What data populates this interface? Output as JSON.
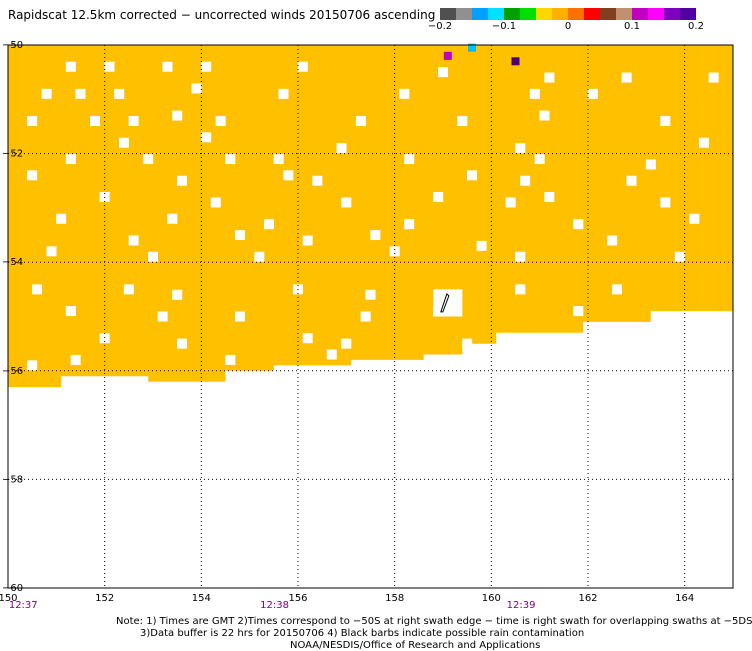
{
  "title": "Rapidscat 12.5km corrected − uncorrected winds 20150706 ascending",
  "colorbar": {
    "colors": [
      "#505050",
      "#909090",
      "#00a0ff",
      "#00e0ff",
      "#00a000",
      "#00e000",
      "#ffd700",
      "#ffb000",
      "#ff7000",
      "#ff0000",
      "#804020",
      "#c09070",
      "#c000c0",
      "#ff00ff",
      "#8000c0",
      "#5000a0"
    ],
    "labels": [
      {
        "text": "−0.2",
        "pos": 0.0
      },
      {
        "text": "−0.1",
        "pos": 0.25
      },
      {
        "text": "0",
        "pos": 0.5
      },
      {
        "text": "0.1",
        "pos": 0.75
      },
      {
        "text": "0.2",
        "pos": 1.0
      }
    ]
  },
  "chart_data": {
    "type": "heatmap",
    "xlim": [
      150,
      165
    ],
    "ylim": [
      -60,
      -50
    ],
    "x_ticks": [
      150,
      152,
      154,
      156,
      158,
      160,
      162,
      164
    ],
    "y_ticks": [
      -50,
      -52,
      -54,
      -56,
      -58,
      -60
    ],
    "x_tick_labels": [
      "150",
      "152",
      "154",
      "156",
      "158",
      "160",
      "162",
      "164"
    ],
    "y_tick_labels": [
      "−50",
      "−52",
      "−54",
      "−56",
      "−58",
      "−60"
    ],
    "fill_color": "#ffc000",
    "grid": true,
    "swath_bottom_edge": [
      [
        150.0,
        -56.3
      ],
      [
        151.1,
        -56.3
      ],
      [
        151.1,
        -56.1
      ],
      [
        152.9,
        -56.1
      ],
      [
        152.9,
        -56.2
      ],
      [
        154.5,
        -56.2
      ],
      [
        154.5,
        -56.0
      ],
      [
        155.5,
        -56.0
      ],
      [
        155.5,
        -55.9
      ],
      [
        157.1,
        -55.9
      ],
      [
        157.1,
        -55.8
      ],
      [
        158.6,
        -55.8
      ],
      [
        158.6,
        -55.7
      ],
      [
        159.4,
        -55.7
      ],
      [
        159.4,
        -55.5
      ],
      [
        160.1,
        -55.5
      ],
      [
        160.1,
        -55.3
      ],
      [
        161.9,
        -55.3
      ],
      [
        161.9,
        -55.1
      ],
      [
        163.3,
        -55.1
      ],
      [
        163.3,
        -54.9
      ],
      [
        165.0,
        -54.9
      ]
    ],
    "missing_cells": [
      [
        151.3,
        -50.4
      ],
      [
        152.1,
        -50.4
      ],
      [
        153.3,
        -50.4
      ],
      [
        154.1,
        -50.4
      ],
      [
        156.1,
        -50.4
      ],
      [
        159.0,
        -50.5
      ],
      [
        161.2,
        -50.6
      ],
      [
        162.8,
        -50.6
      ],
      [
        164.6,
        -50.6
      ],
      [
        150.8,
        -50.9
      ],
      [
        151.5,
        -50.9
      ],
      [
        152.3,
        -50.9
      ],
      [
        153.9,
        -50.8
      ],
      [
        155.7,
        -50.9
      ],
      [
        158.2,
        -50.9
      ],
      [
        160.9,
        -50.9
      ],
      [
        162.1,
        -50.9
      ],
      [
        150.5,
        -51.4
      ],
      [
        151.8,
        -51.4
      ],
      [
        152.6,
        -51.4
      ],
      [
        153.5,
        -51.3
      ],
      [
        154.4,
        -51.4
      ],
      [
        157.3,
        -51.4
      ],
      [
        159.4,
        -51.4
      ],
      [
        161.1,
        -51.3
      ],
      [
        163.6,
        -51.4
      ],
      [
        154.1,
        -51.7
      ],
      [
        152.4,
        -51.8
      ],
      [
        156.9,
        -51.9
      ],
      [
        160.6,
        -51.9
      ],
      [
        164.4,
        -51.8
      ],
      [
        151.3,
        -52.1
      ],
      [
        152.9,
        -52.1
      ],
      [
        154.6,
        -52.1
      ],
      [
        155.6,
        -52.1
      ],
      [
        158.3,
        -52.1
      ],
      [
        161.0,
        -52.1
      ],
      [
        163.3,
        -52.2
      ],
      [
        150.5,
        -52.4
      ],
      [
        153.6,
        -52.5
      ],
      [
        155.8,
        -52.4
      ],
      [
        156.4,
        -52.5
      ],
      [
        159.6,
        -52.4
      ],
      [
        160.7,
        -52.5
      ],
      [
        162.9,
        -52.5
      ],
      [
        152.0,
        -52.8
      ],
      [
        154.3,
        -52.9
      ],
      [
        157.0,
        -52.9
      ],
      [
        158.9,
        -52.8
      ],
      [
        160.4,
        -52.9
      ],
      [
        161.2,
        -52.8
      ],
      [
        163.6,
        -52.9
      ],
      [
        151.1,
        -53.2
      ],
      [
        153.4,
        -53.2
      ],
      [
        155.4,
        -53.3
      ],
      [
        158.3,
        -53.3
      ],
      [
        161.8,
        -53.3
      ],
      [
        164.2,
        -53.2
      ],
      [
        152.6,
        -53.6
      ],
      [
        154.8,
        -53.5
      ],
      [
        156.2,
        -53.6
      ],
      [
        157.6,
        -53.5
      ],
      [
        159.8,
        -53.7
      ],
      [
        162.5,
        -53.6
      ],
      [
        150.9,
        -53.8
      ],
      [
        153.0,
        -53.9
      ],
      [
        155.2,
        -53.9
      ],
      [
        158.0,
        -53.8
      ],
      [
        160.6,
        -53.9
      ],
      [
        163.9,
        -53.9
      ],
      [
        150.6,
        -54.5
      ],
      [
        152.5,
        -54.5
      ],
      [
        153.5,
        -54.6
      ],
      [
        156.0,
        -54.5
      ],
      [
        157.5,
        -54.6
      ],
      [
        160.6,
        -54.5
      ],
      [
        162.6,
        -54.5
      ],
      [
        151.3,
        -54.9
      ],
      [
        153.2,
        -55.0
      ],
      [
        154.8,
        -55.0
      ],
      [
        157.4,
        -55.0
      ],
      [
        158.9,
        -54.9
      ],
      [
        161.8,
        -54.9
      ],
      [
        163.6,
        -55.0
      ],
      [
        152.0,
        -55.4
      ],
      [
        153.6,
        -55.5
      ],
      [
        156.2,
        -55.4
      ],
      [
        157.0,
        -55.5
      ],
      [
        159.5,
        -55.5
      ],
      [
        162.3,
        -55.3
      ],
      [
        150.5,
        -55.9
      ],
      [
        151.4,
        -55.8
      ],
      [
        154.6,
        -55.8
      ],
      [
        156.7,
        -55.7
      ]
    ],
    "colored_cells": [
      {
        "x": 159.1,
        "y": -50.2,
        "color": "#c000c0"
      },
      {
        "x": 160.5,
        "y": -50.3,
        "color": "#4a006e"
      },
      {
        "x": 159.6,
        "y": -50.05,
        "color": "#00c0ff"
      }
    ],
    "rain_gap": {
      "x0": 158.8,
      "x1": 159.4,
      "y0": -55.0,
      "y1": -54.5
    },
    "time_labels": [
      {
        "text": "12:37",
        "x": 150.1
      },
      {
        "text": "12:38",
        "x": 155.3
      },
      {
        "text": "12:39",
        "x": 160.4
      }
    ]
  },
  "notes": [
    "Note: 1) Times are GMT 2)Times correspond to −50S at right swath edge − time is right swath for overlapping swaths at −5DS",
    "3)Data buffer is 22 hrs for 20150706 4) Black barbs indicate possible rain contamination",
    "NOAA/NESDIS/Office of Research and Applications"
  ]
}
